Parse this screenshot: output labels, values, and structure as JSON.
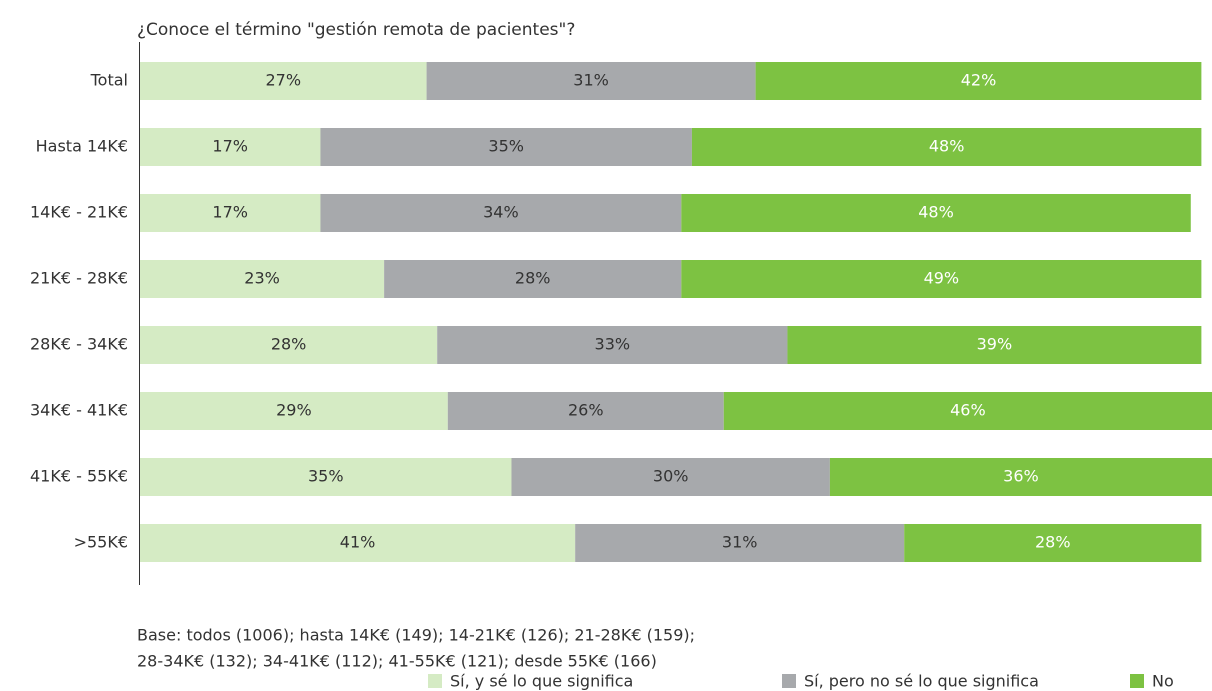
{
  "chart_data": {
    "type": "stacked_bar_horizontal",
    "title": "¿Conoce el término \"gestión remota de pacientes\"?",
    "categories": [
      "Total",
      "Hasta 14K€",
      "14K€ - 21K€",
      "21K€ - 28K€",
      "28K€ - 34K€",
      "34K€ - 41K€",
      "41K€ - 55K€",
      ">55K€"
    ],
    "xlim": [
      0,
      101
    ],
    "series": [
      {
        "name": "Sí, y sé lo que significa",
        "color": "#d5ebc4",
        "label_color": "#333333",
        "values": [
          27,
          17,
          17,
          23,
          28,
          29,
          35,
          41
        ],
        "value_labels": [
          "27%",
          "17%",
          "17%",
          "23%",
          "28%",
          "29%",
          "35%",
          "41%"
        ]
      },
      {
        "name": "Sí, pero no sé lo que significa",
        "color": "#a7a9ac",
        "label_color": "#333333",
        "values": [
          31,
          35,
          34,
          28,
          33,
          26,
          30,
          31
        ],
        "value_labels": [
          "31%",
          "35%",
          "34%",
          "28%",
          "33%",
          "26%",
          "30%",
          "31%"
        ]
      },
      {
        "name": "No",
        "color": "#7dc242",
        "label_color": "#ffffff",
        "values": [
          42,
          48,
          48,
          49,
          39,
          46,
          36,
          28
        ],
        "value_labels": [
          "42%",
          "48%",
          "48%",
          "49%",
          "39%",
          "46%",
          "36%",
          "28%"
        ]
      }
    ],
    "notes": [
      "Base: todos (1006); hasta 14K€ (149); 14-21K€ (126); 21-28K€ (159);",
      "28-34K€ (132); 34-41K€ (112); 41-55K€ (121); desde 55K€ (166)"
    ],
    "legend": "bottom-right"
  }
}
